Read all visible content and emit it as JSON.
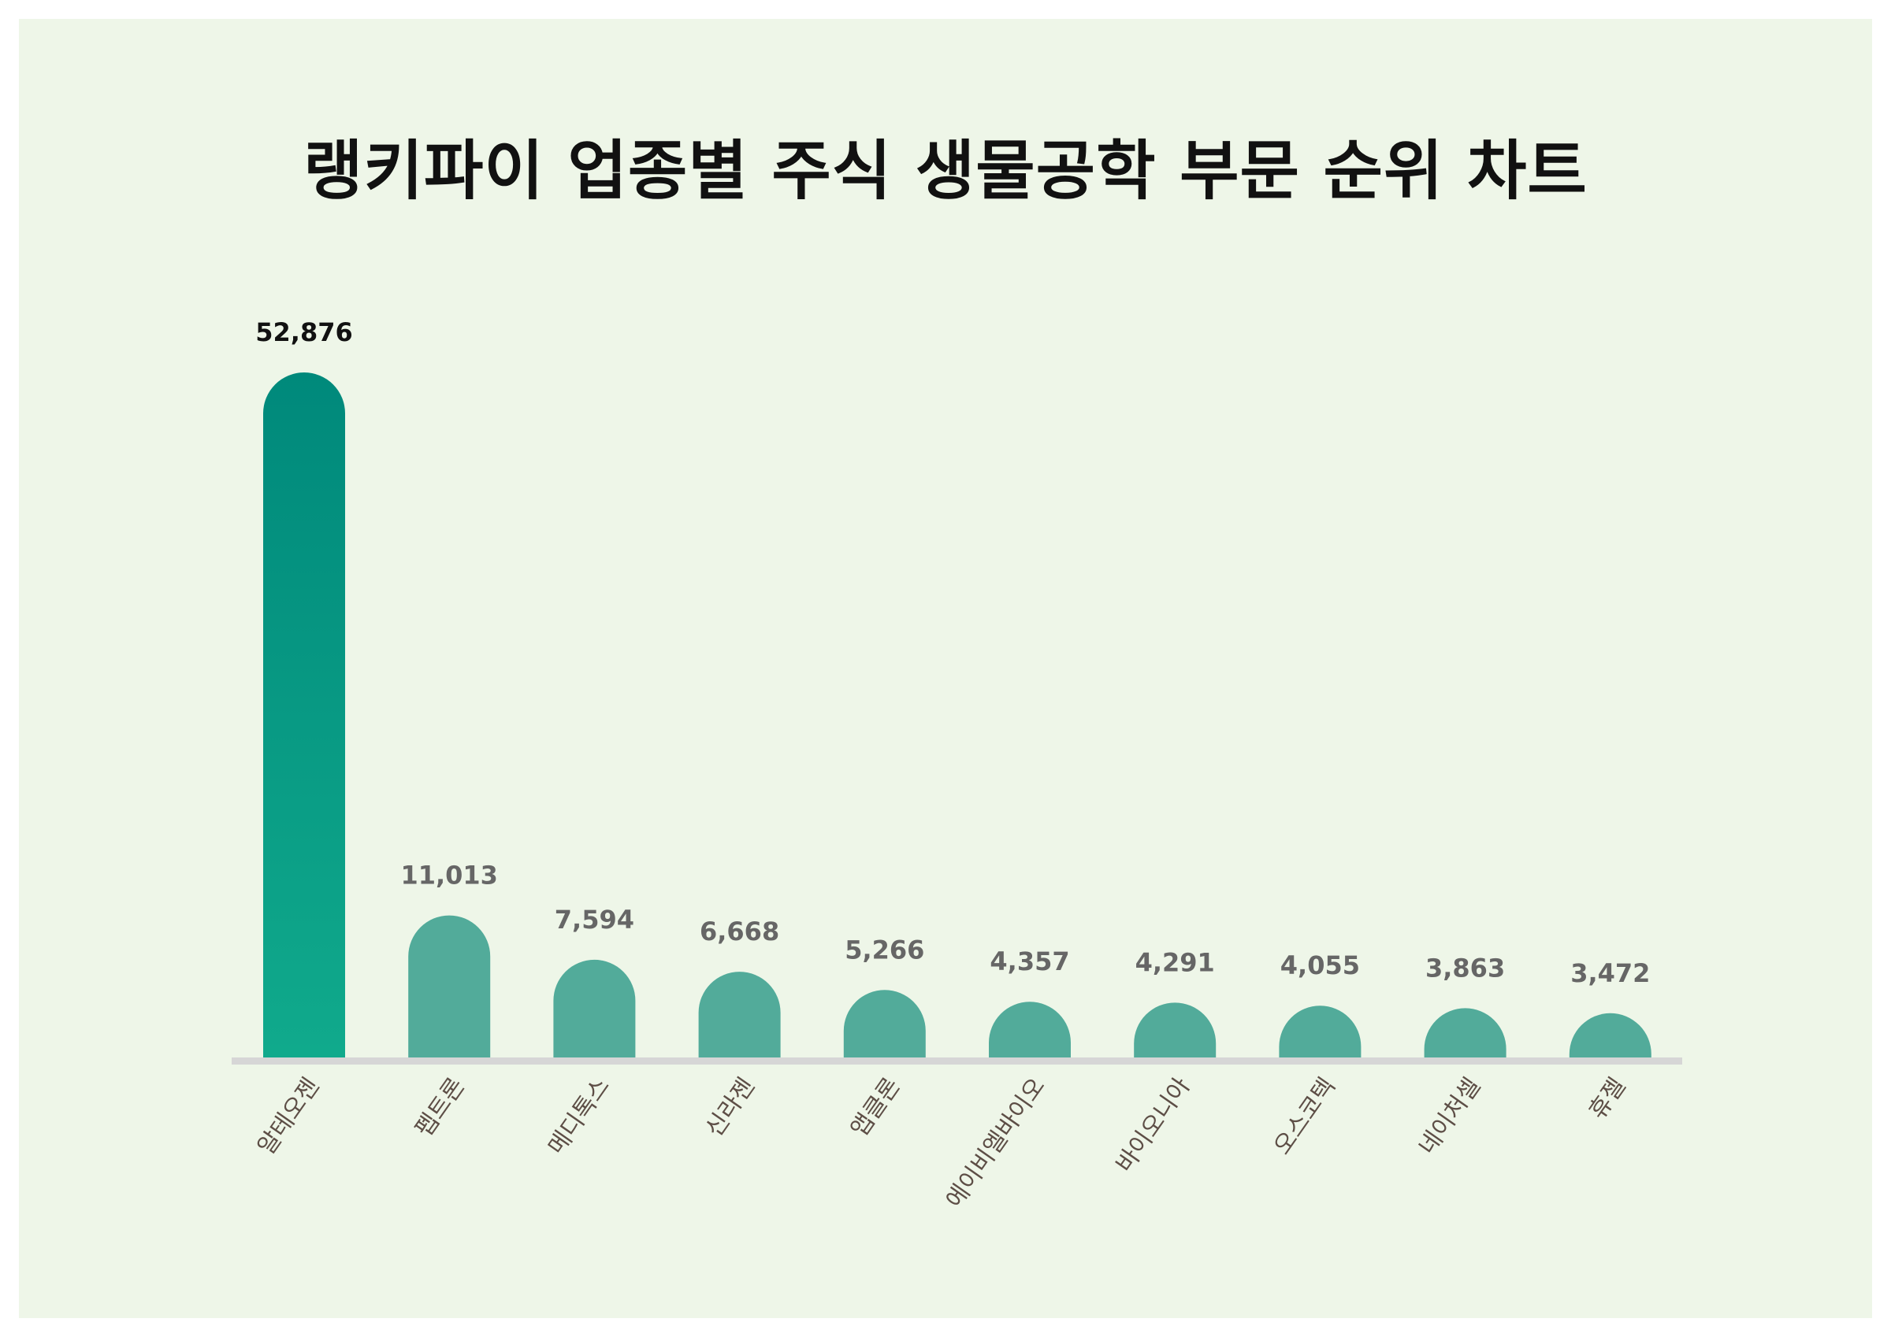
{
  "chart_data": {
    "type": "bar",
    "title": "랭키파이 업종별 주식 생물공학 부문 순위 차트",
    "categories": [
      "알테오젠",
      "펩트론",
      "메디톡스",
      "신라젠",
      "앱클론",
      "에이비엘바이오",
      "바이오니아",
      "오스코텍",
      "네이처셀",
      "휴젤"
    ],
    "values": [
      52876,
      11013,
      7594,
      6668,
      5266,
      4357,
      4291,
      4055,
      3863,
      3472
    ],
    "value_labels": [
      "52,876",
      "11,013",
      "7,594",
      "6,668",
      "5,266",
      "4,357",
      "4,291",
      "4,055",
      "3,863",
      "3,472"
    ],
    "xlabel": "",
    "ylabel": "",
    "ylim": [
      0,
      52876
    ],
    "grid": false,
    "legend": "none",
    "colors": {
      "highlight_top": "#00897b",
      "highlight_bottom": "#10aa8c",
      "bar": "#52ab9a",
      "axis": "#d6d6d6",
      "background": "#eef6e8",
      "label": "#5d4e46",
      "value_highlight": "#111111",
      "value": "#666666"
    }
  }
}
